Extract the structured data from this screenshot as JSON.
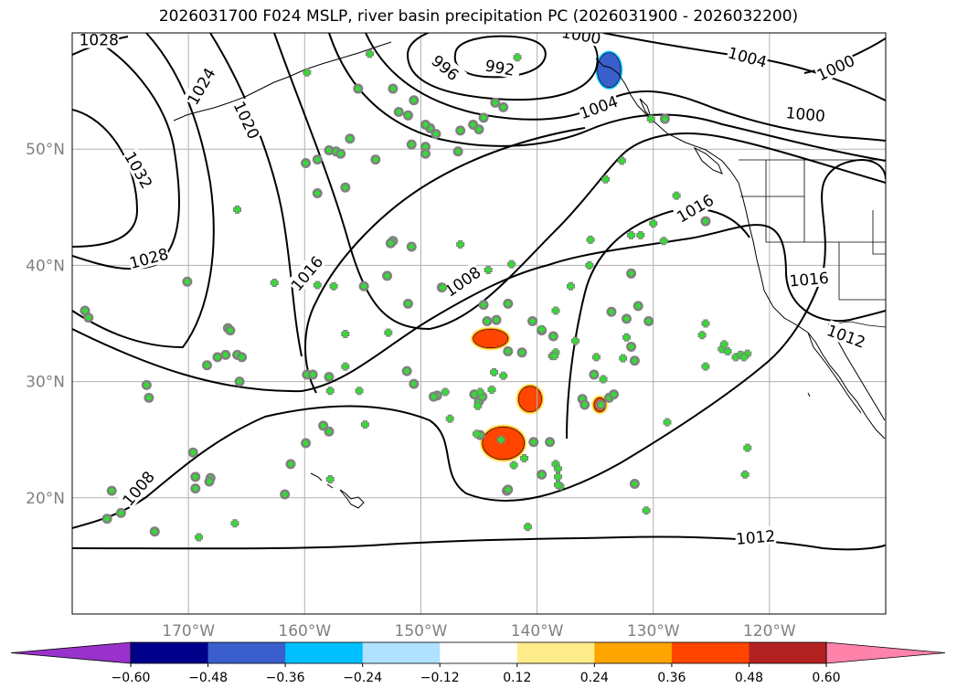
{
  "title": "2026031700 F024 MSLP, river basin precipitation PC (2026031900 - 2026032200)",
  "map": {
    "lon_range": [
      -180,
      -110
    ],
    "lat_range": [
      10,
      60
    ],
    "lon_ticks": [
      {
        "lon": -170,
        "label": "170°W"
      },
      {
        "lon": -160,
        "label": "160°W"
      },
      {
        "lon": -150,
        "label": "150°W"
      },
      {
        "lon": -140,
        "label": "140°W"
      },
      {
        "lon": -130,
        "label": "130°W"
      },
      {
        "lon": -120,
        "label": "120°W"
      }
    ],
    "lat_ticks": [
      {
        "lat": 50,
        "label": "50°N"
      },
      {
        "lat": 40,
        "label": "40°N"
      },
      {
        "lat": 30,
        "label": "30°N"
      },
      {
        "lat": 20,
        "label": "20°N"
      }
    ],
    "grid": true
  },
  "isobar_labels": [
    {
      "text": "1028",
      "lon": -177.7,
      "lat": 59.4,
      "rot": 0
    },
    {
      "text": "1024",
      "lon": -168.9,
      "lat": 55.4,
      "rot": -60
    },
    {
      "text": "1020",
      "lon": -165.0,
      "lat": 52.5,
      "rot": 65
    },
    {
      "text": "1032",
      "lon": -174.3,
      "lat": 48.2,
      "rot": 60
    },
    {
      "text": "1028",
      "lon": -173.4,
      "lat": 40.6,
      "rot": -15
    },
    {
      "text": "1016",
      "lon": -159.8,
      "lat": 39.3,
      "rot": -50
    },
    {
      "text": "992",
      "lon": -143.2,
      "lat": 57.0,
      "rot": 10
    },
    {
      "text": "996",
      "lon": -147.9,
      "lat": 57.0,
      "rot": 40
    },
    {
      "text": "1000",
      "lon": -136.2,
      "lat": 59.8,
      "rot": 10
    },
    {
      "text": "1004",
      "lon": -134.7,
      "lat": 53.6,
      "rot": -20
    },
    {
      "text": "1004",
      "lon": -121.9,
      "lat": 57.9,
      "rot": 15
    },
    {
      "text": "1000",
      "lon": -114.3,
      "lat": 57.0,
      "rot": -25
    },
    {
      "text": "1000",
      "lon": -116.9,
      "lat": 53.0,
      "rot": 5
    },
    {
      "text": "1008",
      "lon": -146.4,
      "lat": 38.6,
      "rot": -35
    },
    {
      "text": "1016",
      "lon": -126.4,
      "lat": 44.9,
      "rot": -30
    },
    {
      "text": "1016",
      "lon": -116.6,
      "lat": 38.8,
      "rot": -5
    },
    {
      "text": "1012",
      "lon": -113.4,
      "lat": 33.9,
      "rot": 20
    },
    {
      "text": "1012",
      "lon": -121.2,
      "lat": 16.6,
      "rot": -5
    },
    {
      "text": "1008",
      "lon": -174.3,
      "lat": 20.8,
      "rot": -50
    }
  ],
  "precip_blobs": [
    {
      "lon": -144.0,
      "lat": 33.7,
      "rx": 1.5,
      "ry": 0.8,
      "value": 0.42
    },
    {
      "lon": -142.9,
      "lat": 24.7,
      "rx": 1.8,
      "ry": 1.4,
      "value": 0.42
    },
    {
      "lon": -140.6,
      "lat": 28.5,
      "rx": 1.0,
      "ry": 1.1,
      "value": 0.42
    },
    {
      "lon": -134.6,
      "lat": 28.0,
      "rx": 0.5,
      "ry": 0.6,
      "value": 0.42
    },
    {
      "lon": -133.8,
      "lat": 56.8,
      "rx": 1.0,
      "ry": 1.5,
      "value": -0.45
    }
  ],
  "stations_gray": [
    [
      -178.9,
      36.1
    ],
    [
      -178.6,
      35.5
    ],
    [
      -170.1,
      38.6
    ],
    [
      -166.6,
      34.6
    ],
    [
      -166.4,
      34.4
    ],
    [
      -167.5,
      32.1
    ],
    [
      -166.8,
      32.3
    ],
    [
      -165.8,
      32.3
    ],
    [
      -165.4,
      32.1
    ],
    [
      -165.6,
      30.0
    ],
    [
      -168.4,
      31.4
    ],
    [
      -173.6,
      29.7
    ],
    [
      -173.4,
      28.6
    ],
    [
      -176.6,
      20.6
    ],
    [
      -175.8,
      18.7
    ],
    [
      -177.0,
      18.2
    ],
    [
      -172.9,
      17.1
    ],
    [
      -169.6,
      23.9
    ],
    [
      -169.4,
      21.8
    ],
    [
      -169.4,
      20.8
    ],
    [
      -168.1,
      21.7
    ],
    [
      -168.2,
      21.4
    ],
    [
      -159.8,
      30.6
    ],
    [
      -159.3,
      30.6
    ],
    [
      -157.9,
      30.4
    ],
    [
      -157.9,
      25.7
    ],
    [
      -158.4,
      26.2
    ],
    [
      -159.9,
      24.7
    ],
    [
      -161.2,
      22.9
    ],
    [
      -161.7,
      20.3
    ],
    [
      -159.9,
      48.8
    ],
    [
      -158.9,
      49.1
    ],
    [
      -158.9,
      46.2
    ],
    [
      -157.9,
      49.9
    ],
    [
      -157.3,
      49.8
    ],
    [
      -156.9,
      49.6
    ],
    [
      -156.1,
      50.9
    ],
    [
      -153.9,
      49.1
    ],
    [
      -152.4,
      42.1
    ],
    [
      -152.6,
      41.9
    ],
    [
      -152.9,
      39.1
    ],
    [
      -154.9,
      38.2
    ],
    [
      -156.5,
      46.7
    ],
    [
      -150.6,
      29.8
    ],
    [
      -151.2,
      30.9
    ],
    [
      -151.1,
      36.7
    ],
    [
      -150.8,
      41.6
    ],
    [
      -149.6,
      50.2
    ],
    [
      -150.8,
      50.4
    ],
    [
      -149.6,
      49.6
    ],
    [
      -149.2,
      51.8
    ],
    [
      -146.8,
      49.8
    ],
    [
      -146.6,
      51.6
    ],
    [
      -145.5,
      52.1
    ],
    [
      -145.0,
      51.7
    ],
    [
      -144.6,
      52.7
    ],
    [
      -148.2,
      38.1
    ],
    [
      -144.6,
      36.6
    ],
    [
      -144.3,
      35.2
    ],
    [
      -143.5,
      35.3
    ],
    [
      -142.5,
      36.7
    ],
    [
      -140.4,
      35.2
    ],
    [
      -139.6,
      34.4
    ],
    [
      -142.5,
      32.6
    ],
    [
      -141.3,
      32.5
    ],
    [
      -138.6,
      33.9
    ],
    [
      -145.0,
      28.3
    ],
    [
      -144.7,
      28.7
    ],
    [
      -145.4,
      28.9
    ],
    [
      -148.6,
      28.8
    ],
    [
      -148.9,
      28.7
    ],
    [
      -144.9,
      25.4
    ],
    [
      -142.6,
      20.6
    ],
    [
      -142.5,
      20.7
    ],
    [
      -140.3,
      24.8
    ],
    [
      -139.6,
      22.0
    ],
    [
      -138.9,
      24.8
    ],
    [
      -136.1,
      28.5
    ],
    [
      -135.9,
      28.0
    ],
    [
      -134.5,
      28.0
    ],
    [
      -133.8,
      28.6
    ],
    [
      -133.4,
      28.9
    ],
    [
      -135.1,
      30.6
    ],
    [
      -132.3,
      35.4
    ],
    [
      -131.9,
      33.0
    ],
    [
      -131.6,
      31.8
    ],
    [
      -130.4,
      35.2
    ],
    [
      -131.3,
      36.5
    ],
    [
      -131.9,
      39.3
    ],
    [
      -133.6,
      36.0
    ],
    [
      -131.6,
      21.2
    ],
    [
      -143.6,
      54.0
    ],
    [
      -142.9,
      53.6
    ],
    [
      -129.0,
      52.6
    ],
    [
      -125.5,
      43.8
    ],
    [
      -155.4,
      55.2
    ],
    [
      -152.4,
      55.2
    ],
    [
      -150.6,
      54.2
    ],
    [
      -151.9,
      53.2
    ],
    [
      -151.1,
      52.9
    ],
    [
      -149.6,
      52.1
    ],
    [
      -148.7,
      51.3
    ]
  ],
  "stations_green": [
    [
      -159.8,
      56.6
    ],
    [
      -154.4,
      58.2
    ],
    [
      -141.7,
      57.9
    ],
    [
      -165.8,
      44.8
    ],
    [
      -162.6,
      38.5
    ],
    [
      -158.9,
      38.3
    ],
    [
      -157.5,
      38.2
    ],
    [
      -156.5,
      34.1
    ],
    [
      -155.3,
      29.2
    ],
    [
      -152.8,
      34.2
    ],
    [
      -157.8,
      21.6
    ],
    [
      -154.8,
      26.3
    ],
    [
      -157.8,
      29.2
    ],
    [
      -156.5,
      31.3
    ],
    [
      -166.0,
      17.8
    ],
    [
      -169.1,
      16.6
    ],
    [
      -147.9,
      29.1
    ],
    [
      -147.5,
      26.8
    ],
    [
      -145.2,
      25.5
    ],
    [
      -145.1,
      27.9
    ],
    [
      -144.9,
      29.1
    ],
    [
      -143.9,
      29.3
    ],
    [
      -143.7,
      30.8
    ],
    [
      -142.9,
      30.5
    ],
    [
      -142.0,
      22.8
    ],
    [
      -143.1,
      25.0
    ],
    [
      -141.1,
      23.4
    ],
    [
      -140.8,
      17.5
    ],
    [
      -138.7,
      32.2
    ],
    [
      -138.4,
      32.5
    ],
    [
      -136.7,
      33.5
    ],
    [
      -134.3,
      30.2
    ],
    [
      -132.3,
      33.8
    ],
    [
      -132.6,
      32.0
    ],
    [
      -134.9,
      32.1
    ],
    [
      -135.5,
      40.0
    ],
    [
      -135.4,
      42.2
    ],
    [
      -138.5,
      32.2
    ],
    [
      -138.4,
      36.1
    ],
    [
      -137.1,
      38.2
    ],
    [
      -139.6,
      34.5
    ],
    [
      -142.2,
      40.1
    ],
    [
      -144.2,
      39.6
    ],
    [
      -146.6,
      41.8
    ],
    [
      -148.1,
      38.1
    ],
    [
      -138.4,
      22.9
    ],
    [
      -138.2,
      22.5
    ],
    [
      -138.0,
      21.0
    ],
    [
      -138.2,
      21.1
    ],
    [
      -138.2,
      21.8
    ],
    [
      -131.9,
      42.6
    ],
    [
      -131.1,
      42.6
    ],
    [
      -129.1,
      42.1
    ],
    [
      -128.0,
      46.0
    ],
    [
      -130.0,
      43.6
    ],
    [
      -134.1,
      47.4
    ],
    [
      -132.7,
      49.0
    ],
    [
      -130.2,
      52.6
    ],
    [
      -128.8,
      26.5
    ],
    [
      -130.6,
      18.9
    ],
    [
      -125.5,
      35.0
    ],
    [
      -125.5,
      31.3
    ],
    [
      -125.8,
      34.0
    ],
    [
      -124.1,
      32.8
    ],
    [
      -123.9,
      33.2
    ],
    [
      -123.6,
      32.6
    ],
    [
      -122.9,
      32.1
    ],
    [
      -122.5,
      32.3
    ],
    [
      -121.9,
      32.4
    ],
    [
      -122.2,
      32.1
    ],
    [
      -121.9,
      24.3
    ],
    [
      -122.1,
      22.0
    ]
  ],
  "colorbar": {
    "colors": [
      "#9932CC",
      "#00008B",
      "#3A5FCD",
      "#00BFFF",
      "#B0E2FF",
      "#FFFFFF",
      "#FFEC8B",
      "#FFA500",
      "#FF4500",
      "#B22222",
      "#FF82AB"
    ],
    "ticks": [
      "−0.60",
      "−0.48",
      "−0.36",
      "−0.24",
      "−0.12",
      "0.12",
      "0.24",
      "0.36",
      "0.48",
      "0.60"
    ]
  }
}
